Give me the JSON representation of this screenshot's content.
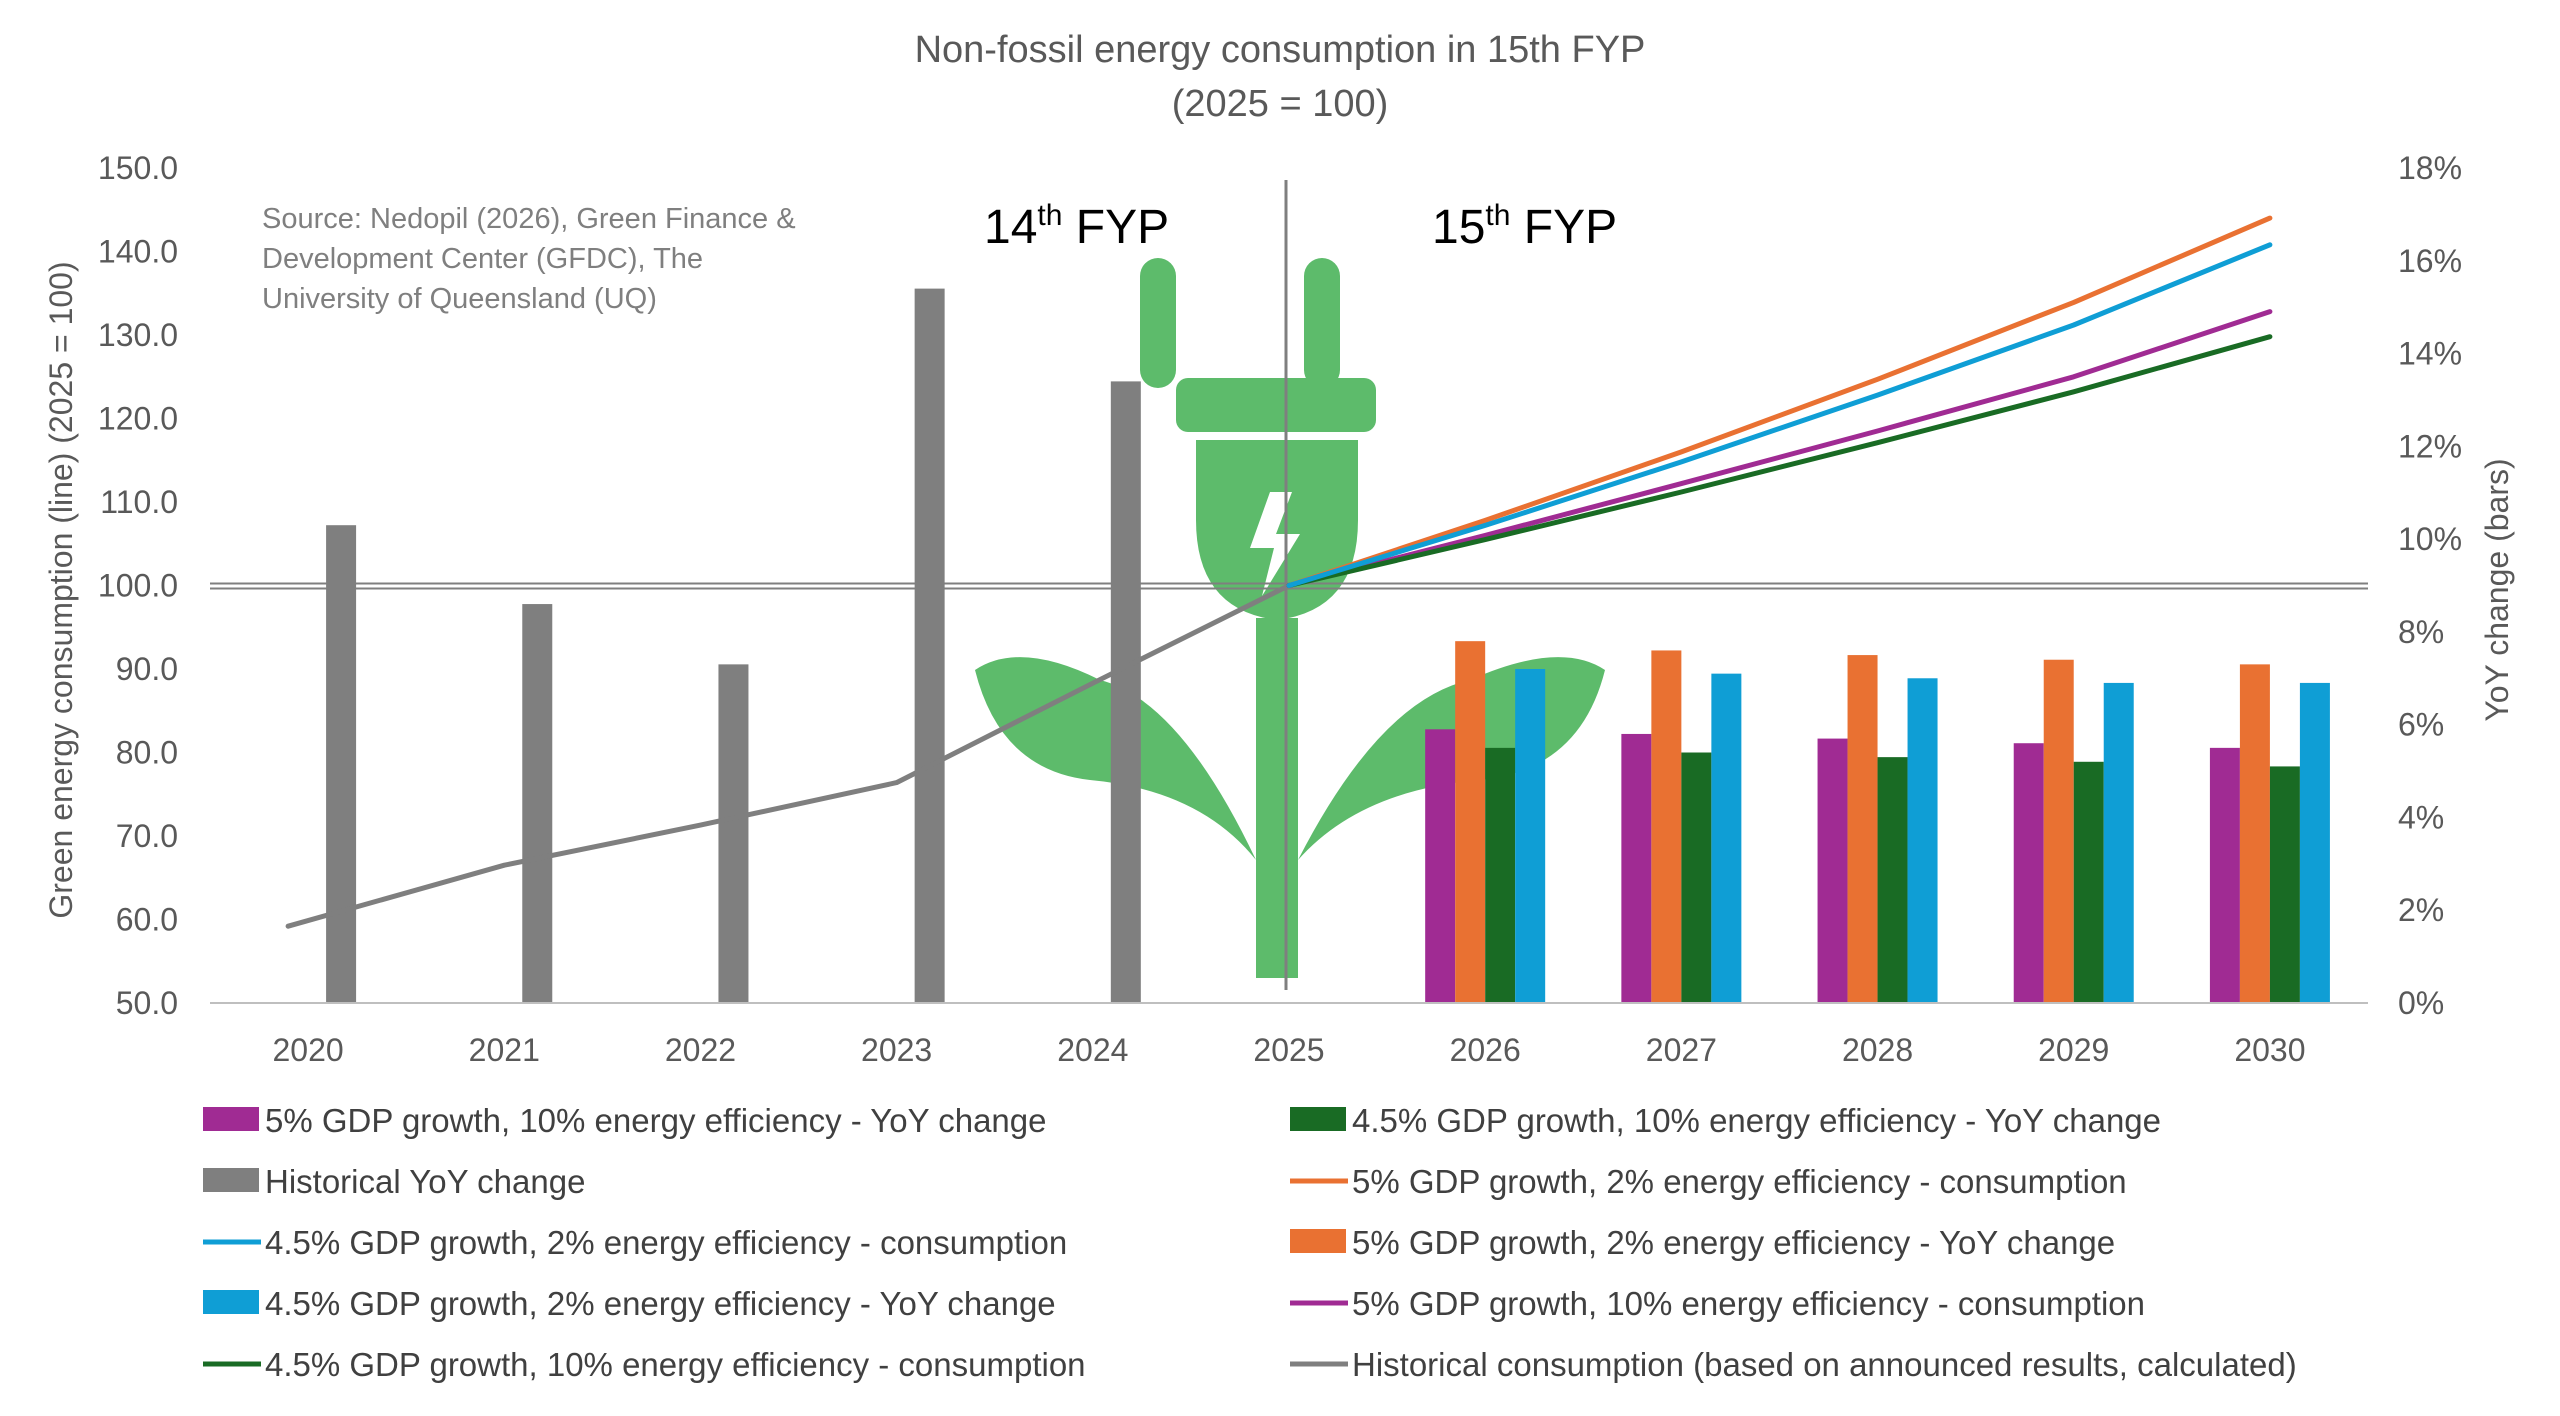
{
  "chart_data": {
    "type": "bar",
    "title": "Non-fossil energy consumption in 15th FYP",
    "subtitle": "(2025 = 100)",
    "categories": [
      "2020",
      "2021",
      "2022",
      "2023",
      "2024",
      "2025",
      "2026",
      "2027",
      "2028",
      "2029",
      "2030"
    ],
    "y_left": {
      "label": "Green energy consumption (line) (2025 = 100)",
      "min": 50,
      "max": 150,
      "step": 10,
      "ticks": [
        "50.0",
        "60.0",
        "70.0",
        "80.0",
        "90.0",
        "100.0",
        "110.0",
        "120.0",
        "130.0",
        "140.0",
        "150.0"
      ]
    },
    "y_right": {
      "label": "YoY change (bars)",
      "min": 0,
      "max": 18,
      "step": 2,
      "ticks": [
        "0%",
        "2%",
        "4%",
        "6%",
        "8%",
        "10%",
        "12%",
        "14%",
        "16%",
        "18%"
      ]
    },
    "source_lines": [
      "Source: Nedopil (2026), Green Finance &",
      "Development Center (GFDC), The",
      "University of Queensland (UQ)"
    ],
    "period_labels": [
      {
        "base": "14",
        "sup": "th",
        "rest": " FYP"
      },
      {
        "base": "15",
        "sup": "th",
        "rest": " FYP"
      }
    ],
    "reference_line_value": 100,
    "period_divider_category": "2025",
    "bar_series": [
      {
        "name": "Historical YoY change",
        "color": "#7f7f7f",
        "values": [
          10.3,
          8.6,
          7.3,
          15.4,
          13.4,
          null,
          null,
          null,
          null,
          null,
          null
        ]
      },
      {
        "name": "5% GDP growth, 10% energy efficiency - YoY change",
        "color": "#a02b93",
        "values": [
          null,
          null,
          null,
          null,
          null,
          null,
          5.9,
          5.8,
          5.7,
          5.6,
          5.5
        ]
      },
      {
        "name": "5% GDP growth, 2% energy efficiency - YoY change",
        "color": "#e97132",
        "values": [
          null,
          null,
          null,
          null,
          null,
          null,
          7.8,
          7.6,
          7.5,
          7.4,
          7.3
        ]
      },
      {
        "name": "4.5% GDP growth, 10% energy efficiency  - YoY change",
        "color": "#196b24",
        "values": [
          null,
          null,
          null,
          null,
          null,
          null,
          5.5,
          5.4,
          5.3,
          5.2,
          5.1
        ]
      },
      {
        "name": "4.5% GDP growth, 2% energy efficiency - YoY change",
        "color": "#0f9ed5",
        "values": [
          null,
          null,
          null,
          null,
          null,
          null,
          7.2,
          7.1,
          7.0,
          6.9,
          6.9
        ]
      }
    ],
    "line_series": [
      {
        "name": "Historical consumption (based on announced results, calculated)",
        "color": "#7f7f7f",
        "values": [
          59.2,
          66.5,
          71.3,
          76.4,
          88.3,
          100,
          null,
          null,
          null,
          null,
          null
        ]
      },
      {
        "name": "5% GDP growth, 10% energy efficiency - consumption",
        "color": "#a02b93",
        "values": [
          null,
          null,
          null,
          null,
          null,
          100,
          106,
          112.2,
          118.5,
          125,
          132.8
        ]
      },
      {
        "name": "5% GDP growth, 2% energy efficiency - consumption",
        "color": "#e97132",
        "values": [
          null,
          null,
          null,
          null,
          null,
          100,
          107.8,
          116,
          124.7,
          133.9,
          144
        ]
      },
      {
        "name": "4.5% GDP growth, 10% energy efficiency - consumption",
        "color": "#196b24",
        "values": [
          null,
          null,
          null,
          null,
          null,
          100,
          105.5,
          111.2,
          117.1,
          123.2,
          129.8
        ]
      },
      {
        "name": "4.5% GDP growth,  2% energy efficiency - consumption",
        "color": "#0f9ed5",
        "values": [
          null,
          null,
          null,
          null,
          null,
          100,
          107.2,
          114.8,
          122.8,
          131.2,
          140.8
        ]
      }
    ],
    "legend": [
      {
        "text": "5% GDP growth, 10% energy efficiency - YoY change",
        "color": "#a02b93",
        "kind": "bar"
      },
      {
        "text": "5% GDP growth, 2% energy efficiency - YoY change",
        "color": "#e97132",
        "kind": "bar"
      },
      {
        "text": "4.5% GDP growth, 10% energy efficiency  - YoY change",
        "color": "#196b24",
        "kind": "bar"
      },
      {
        "text": "4.5% GDP growth, 2% energy efficiency - YoY change",
        "color": "#0f9ed5",
        "kind": "bar"
      },
      {
        "text": "Historical YoY change",
        "color": "#7f7f7f",
        "kind": "bar"
      },
      {
        "text": "5% GDP growth, 10% energy efficiency - consumption",
        "color": "#a02b93",
        "kind": "line"
      },
      {
        "text": "5% GDP growth, 2% energy efficiency - consumption",
        "color": "#e97132",
        "kind": "line"
      },
      {
        "text": " 4.5% GDP growth, 10% energy efficiency - consumption",
        "color": "#196b24",
        "kind": "line"
      },
      {
        "text": "4.5% GDP growth,  2% energy efficiency - consumption",
        "color": "#0f9ed5",
        "kind": "line"
      },
      {
        "text": "Historical consumption (based on announced results, calculated)",
        "color": "#7f7f7f",
        "kind": "line"
      }
    ],
    "background_icon": "plug-with-leaves-icon",
    "icon_color": "#5dbb6b",
    "grid": false,
    "legend_position": "bottom"
  }
}
